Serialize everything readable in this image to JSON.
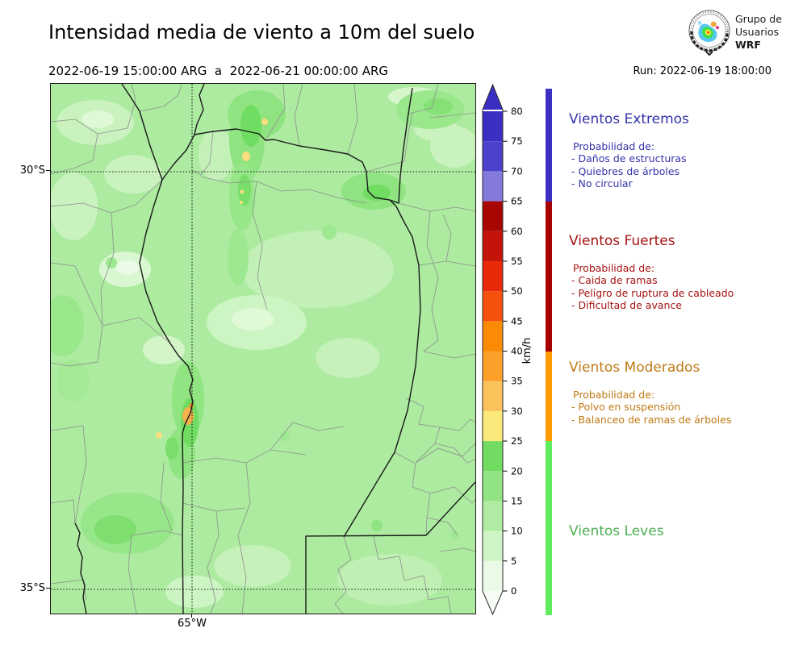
{
  "header": {
    "title": "Intensidad media de viento a 10m del suelo",
    "date_range": "2022-06-19 15:00:00 ARG  a  2022-06-21 00:00:00 ARG",
    "run_label": "Run: 2022-06-19 18:00:00",
    "logo": {
      "line1": "Grupo de",
      "line2": "Usuarios",
      "line3": "WRF"
    }
  },
  "map": {
    "y_axis_labels": {
      "lat30": "30°S",
      "lat35": "35°S"
    },
    "x_axis_label": "65°W",
    "base_color": "#ACEBA0"
  },
  "colorbar": {
    "unit": "km/h",
    "ticks": [
      0,
      5,
      10,
      15,
      20,
      25,
      30,
      35,
      40,
      45,
      50,
      55,
      60,
      65,
      70,
      75,
      80
    ],
    "arrow_top_color": "#3B2EC3",
    "arrow_bottom_color": "#F7FDF5",
    "segments": [
      {
        "from": 0,
        "to": 5,
        "color": "#EBFAE6"
      },
      {
        "from": 5,
        "to": 10,
        "color": "#CFF4C5"
      },
      {
        "from": 10,
        "to": 15,
        "color": "#B0EBA3"
      },
      {
        "from": 15,
        "to": 20,
        "color": "#91E383"
      },
      {
        "from": 20,
        "to": 25,
        "color": "#72DB62"
      },
      {
        "from": 25,
        "to": 30,
        "color": "#FBE97C"
      },
      {
        "from": 30,
        "to": 35,
        "color": "#FBC25C"
      },
      {
        "from": 35,
        "to": 40,
        "color": "#FDA029"
      },
      {
        "from": 40,
        "to": 45,
        "color": "#FB8A04"
      },
      {
        "from": 45,
        "to": 50,
        "color": "#F5500C"
      },
      {
        "from": 50,
        "to": 55,
        "color": "#E82A0A"
      },
      {
        "from": 55,
        "to": 60,
        "color": "#C41309"
      },
      {
        "from": 60,
        "to": 65,
        "color": "#A80603"
      },
      {
        "from": 65,
        "to": 70,
        "color": "#837ADC"
      },
      {
        "from": 70,
        "to": 75,
        "color": "#4C41CA"
      },
      {
        "from": 75,
        "to": 80,
        "color": "#3B2EC3"
      }
    ]
  },
  "categories": [
    {
      "title": "Vientos Extremos",
      "text_color": "#3533A8",
      "bar_color": "#3B2EC3",
      "threshold_kmh": 65,
      "intro": "Probabilidad de:",
      "items": [
        "- Daños de estructuras",
        "- Quiebres de árboles",
        "- No circular"
      ]
    },
    {
      "title": "Vientos Fuertes",
      "text_color": "#A51313",
      "bar_color": "#A80000",
      "threshold_kmh": 40,
      "intro": "Probabilidad de:",
      "items": [
        "- Caida de ramas",
        "- Peligro de ruptura de cableado",
        "- Dificultad de avance"
      ]
    },
    {
      "title": "Vientos Moderados",
      "text_color": "#BF7A16",
      "bar_color": "#FE9900",
      "threshold_kmh": 25,
      "intro": "Probabilidad de:",
      "items": [
        "- Polvo en suspensión",
        "- Balanceo de ramas de árboles"
      ]
    },
    {
      "title": "Vientos Leves",
      "text_color": "#4BAE52",
      "bar_color": "#5FEC5F",
      "threshold_kmh": 0,
      "intro": "",
      "items": []
    }
  ]
}
